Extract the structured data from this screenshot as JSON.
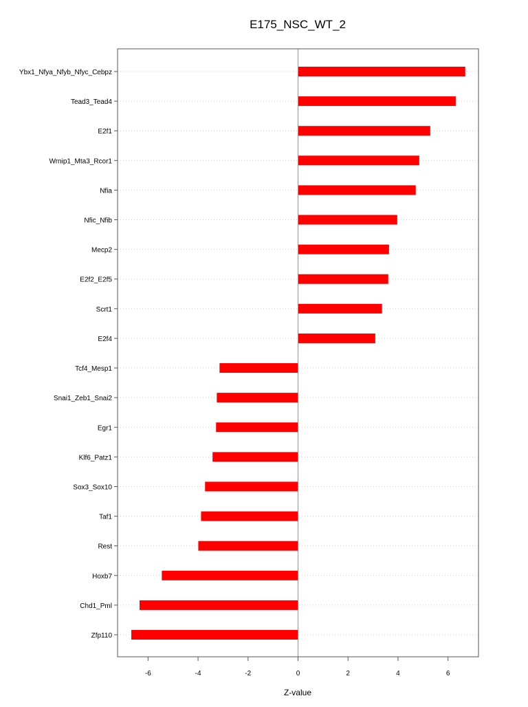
{
  "chart_data": {
    "type": "bar",
    "orientation": "horizontal",
    "title": "E175_NSC_WT_2",
    "xlabel": "Z-value",
    "ylabel": "",
    "xlim": [
      -7.22,
      7.22
    ],
    "xticks": [
      -6,
      -4,
      -2,
      0,
      2,
      4,
      6
    ],
    "grid": "horizontal dotted",
    "zero_line_color": "#00ff00",
    "bar_color": "#ff0000",
    "categories": [
      "Ybx1_Nfya_Nfyb_Nfyc_Cebpz",
      "Tead3_Tead4",
      "E2f1",
      "Wrnip1_Mta3_Rcor1",
      "Nfia",
      "Nfic_Nfib",
      "Mecp2",
      "E2f2_E2f5",
      "Scrt1",
      "E2f4",
      "Tcf4_Mesp1",
      "Snai1_Zeb1_Snai2",
      "Egr1",
      "Klf6_Patz1",
      "Sox3_Sox10",
      "Taf1",
      "Rest",
      "Hoxb7",
      "Chd1_Pml",
      "Zfp110"
    ],
    "values": [
      6.69,
      6.31,
      5.29,
      4.85,
      4.71,
      3.97,
      3.64,
      3.61,
      3.36,
      3.09,
      -3.14,
      -3.25,
      -3.28,
      -3.42,
      -3.72,
      -3.88,
      -3.99,
      -5.45,
      -6.34,
      -6.67
    ]
  }
}
